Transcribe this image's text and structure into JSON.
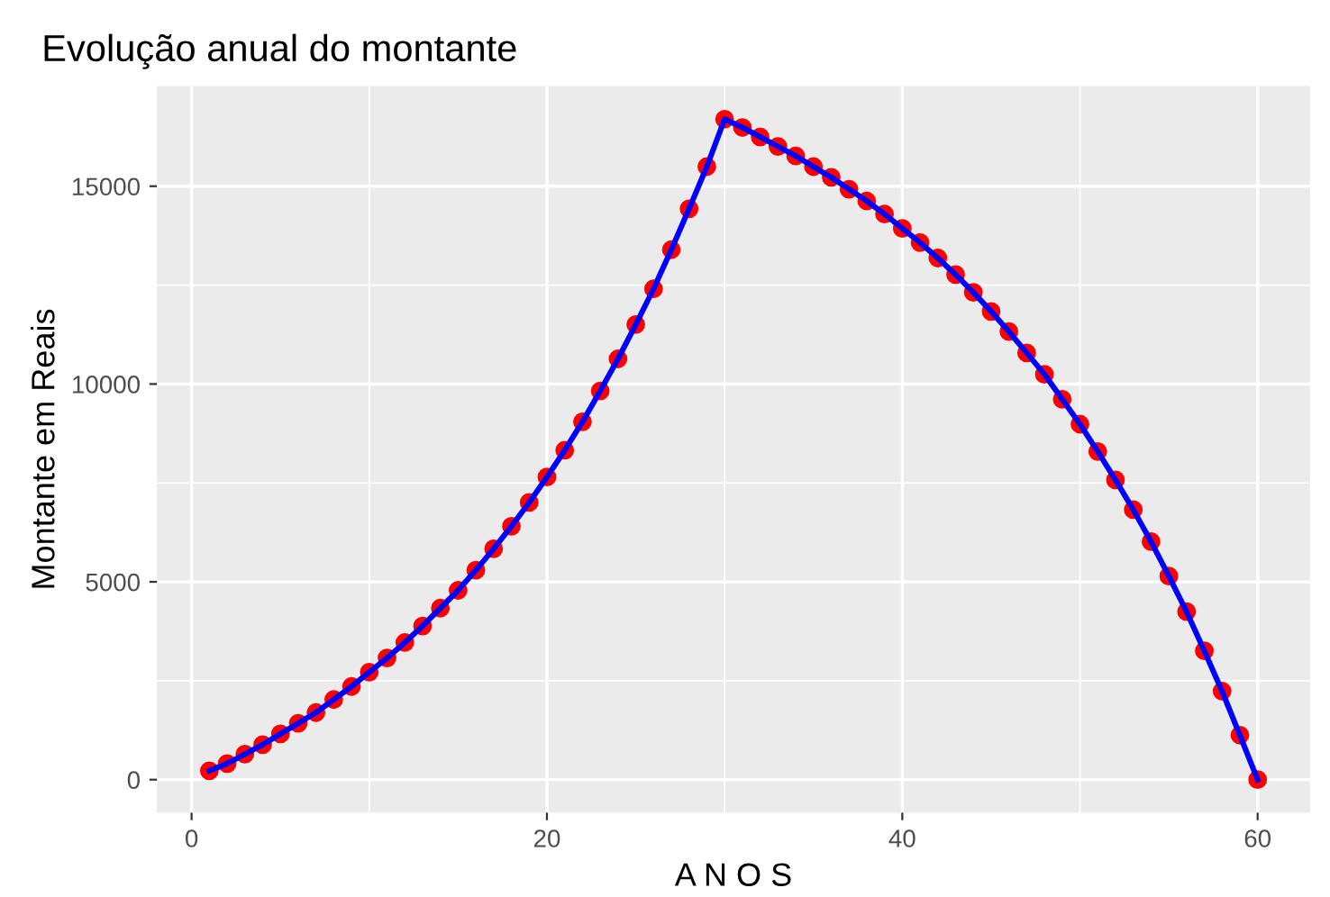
{
  "chart_data": {
    "type": "line",
    "title": "Evolução anual do montante",
    "xlabel": "A N O S",
    "ylabel": "Montante em Reais",
    "x": [
      1,
      2,
      3,
      4,
      5,
      6,
      7,
      8,
      9,
      10,
      11,
      12,
      13,
      14,
      15,
      16,
      17,
      18,
      19,
      20,
      21,
      22,
      23,
      24,
      25,
      26,
      27,
      28,
      29,
      30,
      31,
      32,
      33,
      34,
      35,
      36,
      37,
      38,
      39,
      40,
      41,
      42,
      43,
      44,
      45,
      46,
      47,
      48,
      49,
      50,
      51,
      52,
      53,
      54,
      55,
      56,
      57,
      58,
      59,
      60
    ],
    "series": [
      {
        "type": "scatter",
        "color": "#ff0000",
        "marker": "circle",
        "values": [
          225,
          405,
          645,
          885,
          1155,
          1425,
          1695,
          2025,
          2355,
          2715,
          3075,
          3465,
          3885,
          4335,
          4785,
          5295,
          5835,
          6405,
          7005,
          7650,
          8325,
          9045,
          9825,
          10635,
          11505,
          12405,
          13395,
          14430,
          15495,
          16695,
          16485,
          16245,
          16005,
          15765,
          15495,
          15225,
          14925,
          14625,
          14295,
          13935,
          13575,
          13185,
          12765,
          12315,
          11835,
          11325,
          10785,
          10245,
          9615,
          8985,
          8295,
          7575,
          6825,
          6015,
          5145,
          4245,
          3255,
          2235,
          1125,
          0
        ]
      },
      {
        "color": "#0000ff",
        "line_style": "solid",
        "values": [
          225,
          405,
          645,
          885,
          1155,
          1425,
          1695,
          2025,
          2355,
          2715,
          3075,
          3465,
          3885,
          4335,
          4785,
          5295,
          5835,
          6405,
          7005,
          7650,
          8325,
          9045,
          9825,
          10635,
          11505,
          12405,
          13395,
          14430,
          15495,
          16695,
          16485,
          16245,
          16005,
          15765,
          15495,
          15225,
          14925,
          14625,
          14295,
          13935,
          13575,
          13185,
          12765,
          12315,
          11835,
          11325,
          10785,
          10245,
          9615,
          8985,
          8295,
          7575,
          6825,
          6015,
          5145,
          4245,
          3255,
          2235,
          1125,
          0
        ]
      }
    ],
    "xlim": [
      -1.95,
      62.95
    ],
    "ylim": [
      -835,
      17530
    ],
    "xticks": [
      0,
      20,
      40,
      60
    ],
    "yticks": [
      0,
      5000,
      10000,
      15000
    ],
    "grid": true
  }
}
